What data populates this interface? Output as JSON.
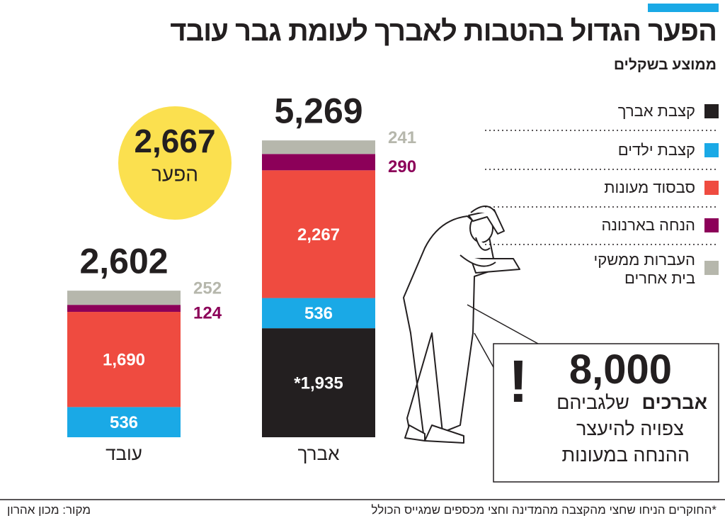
{
  "chart_data": {
    "type": "stacked_bar",
    "title": "הפער הגדול בהטבות לאברך לעומת גבר עובד",
    "subtitle": "ממוצע בשקלים",
    "categories": [
      "עובד",
      "אברך"
    ],
    "series": [
      {
        "name": "קצבת אברך",
        "color": "#231f20",
        "values": [
          null,
          1935
        ],
        "value_labels": [
          null,
          "*1,935"
        ]
      },
      {
        "name": "קצבת ילדים",
        "color": "#1aa9e6",
        "values": [
          536,
          536
        ],
        "value_labels": [
          "536",
          "536"
        ]
      },
      {
        "name": "סבסוד מעונות",
        "color": "#ef4b40",
        "values": [
          1690,
          2267
        ],
        "value_labels": [
          "1,690",
          "2,267"
        ]
      },
      {
        "name": "הנחה בארנונה",
        "color": "#8c0059",
        "values": [
          124,
          290
        ],
        "value_labels": [
          "124",
          "290"
        ]
      },
      {
        "name": "העברות ממשקי בית אחרים",
        "color": "#b6b7ac",
        "values": [
          252,
          241
        ],
        "value_labels": [
          "252",
          "241"
        ]
      }
    ],
    "totals": [
      2602,
      5269
    ],
    "total_labels": [
      "2,602",
      "5,269"
    ],
    "gap": {
      "value": 2667,
      "label": "2,667",
      "text": "הפער",
      "color": "#fbe04f"
    },
    "annotation": {
      "mark": "!",
      "number": {
        "value": 8000,
        "label": "8,000"
      },
      "bold": "אברכים",
      "line1": "שלגביהם",
      "line2": "צפויה להיעצר",
      "line3": "ההנחה במעונות"
    },
    "footnote": "*החוקרים הניחו שחצי מהקצבה מהמדינה וחצי מכספים שמגייס הכולל",
    "source": "מקור: מכון אהרון"
  }
}
